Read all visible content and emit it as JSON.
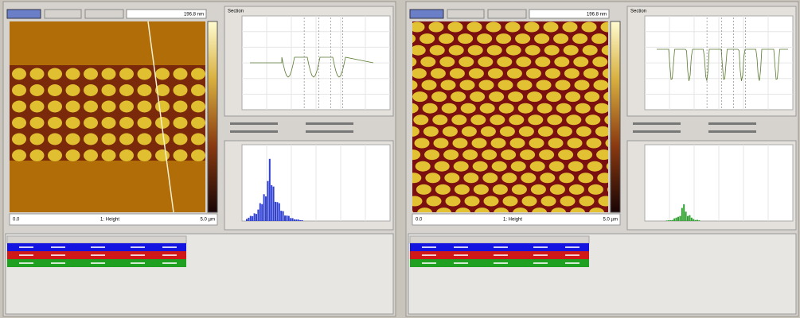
{
  "panels": [
    {
      "scale_max": "196.8 nm",
      "scale_min": "0.0",
      "channel": "1: Height",
      "scan_size": "5.0 µm",
      "section_title": "Section"
    },
    {
      "scale_max": "196.8 nm",
      "scale_min": "0.0",
      "channel": "1: Height",
      "scan_size": "5.0 µm",
      "section_title": "Section"
    }
  ]
}
